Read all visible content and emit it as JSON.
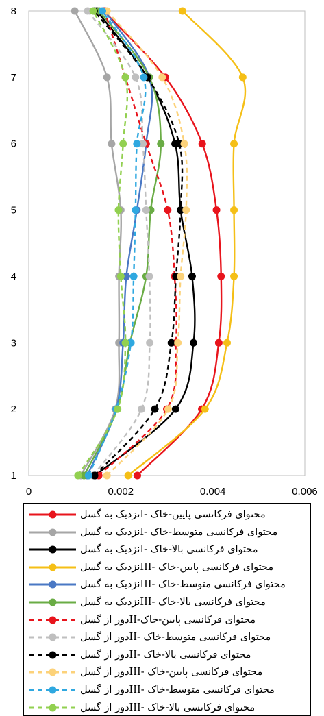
{
  "chart_data": {
    "type": "line",
    "orientation": "vertical-profile",
    "title": "",
    "xlabel": "",
    "ylabel": "",
    "xlim": [
      0,
      0.006
    ],
    "ylim": [
      1,
      8
    ],
    "x_ticks": [
      "0",
      "0.002",
      "0.004",
      "0.006"
    ],
    "y_ticks": [
      "1",
      "2",
      "3",
      "4",
      "5",
      "6",
      "7",
      "8"
    ],
    "y": [
      1,
      2,
      3,
      4,
      5,
      6,
      7,
      8
    ],
    "grid": false,
    "legend": "bottom",
    "series": [
      {
        "name": "محتوای فرکانسی پایین-خاک -Iنزدیک به گسل",
        "color": "#e8141c",
        "dash": "solid",
        "x": [
          0.00236,
          0.00376,
          0.00413,
          0.00418,
          0.00408,
          0.00377,
          0.00297,
          0.00163
        ]
      },
      {
        "name": "محتوای فرکانسی متوسط-خاک -Iنزدیک به گسل",
        "color": "#a6a6a6",
        "dash": "solid",
        "x": [
          0.00113,
          0.00188,
          0.00196,
          0.00196,
          0.002,
          0.0018,
          0.0017,
          0.001
        ]
      },
      {
        "name": "محتوای فرکانسی بالا-خاک -Iنزدیک به گسل",
        "color": "#000000",
        "dash": "solid",
        "x": [
          0.00144,
          0.00319,
          0.00358,
          0.00355,
          0.0033,
          0.00318,
          0.00258,
          0.00148
        ]
      },
      {
        "name": "محتوای فرکانسی پایین-خاک -IIIنزدیک به گسل",
        "color": "#f5bf16",
        "dash": "solid",
        "x": [
          0.00216,
          0.00383,
          0.00431,
          0.00446,
          0.00446,
          0.00446,
          0.00465,
          0.00334
        ]
      },
      {
        "name": "محتوای فرکانسی متوسط-خاک -IIIنزدیک به گسل",
        "color": "#4a78c4",
        "dash": "solid",
        "x": [
          0.00127,
          0.0019,
          0.00205,
          0.00212,
          0.00235,
          0.00255,
          0.00262,
          0.00165
        ]
      },
      {
        "name": "محتوای فرکانسی بالا-خاک -IIIنزدیک به گسل",
        "color": "#6aac45",
        "dash": "solid",
        "x": [
          0.0012,
          0.00192,
          0.0022,
          0.00255,
          0.00265,
          0.00287,
          0.00262,
          0.00153
        ]
      },
      {
        "name": "محتوای فرکانسی پایین-خاک-IIدور از گسل",
        "color": "#e8141c",
        "dash": "dashed",
        "x": [
          0.00152,
          0.003,
          0.0032,
          0.00317,
          0.00302,
          0.00255,
          0.0021,
          0.00165
        ]
      },
      {
        "name": "محتوای فرکانسی متوسط-خاک -IIدور از گسل",
        "color": "#bfbfbf",
        "dash": "dashed",
        "x": [
          0.0014,
          0.00245,
          0.00263,
          0.00262,
          0.00255,
          0.00248,
          0.00232,
          0.00128
        ]
      },
      {
        "name": "محتوای فرکانسی بالا-خاک -IIدور از گسل",
        "color": "#000000",
        "dash": "dashed",
        "x": [
          0.00143,
          0.00274,
          0.0031,
          0.0032,
          0.0033,
          0.00327,
          0.00258,
          0.00142
        ]
      },
      {
        "name": "محتوای فرکانسی پایین-خاک -IIIدور از گسل",
        "color": "#fcd27a",
        "dash": "dashed",
        "x": [
          0.0017,
          0.00303,
          0.00324,
          0.0033,
          0.00342,
          0.00338,
          0.0029,
          0.0017
        ]
      },
      {
        "name": "محتوای فرکانسی متوسط-خاک -IIIدور از گسل",
        "color": "#2fa8e0",
        "dash": "dashed",
        "x": [
          0.0013,
          0.0019,
          0.00222,
          0.00228,
          0.00232,
          0.00235,
          0.0025,
          0.0016
        ]
      },
      {
        "name": "محتوای فرکانسی بالا-خاک -IIIدور از گسل",
        "color": "#92d050",
        "dash": "dashed",
        "x": [
          0.00107,
          0.00193,
          0.0021,
          0.002,
          0.00195,
          0.00205,
          0.0021,
          0.0014
        ]
      }
    ]
  }
}
